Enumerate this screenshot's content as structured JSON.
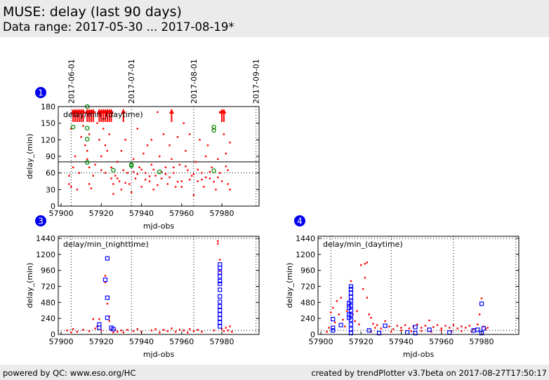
{
  "header": {
    "title": "MUSE: delay (last 90 days)",
    "subtitle": "Data range: 2017-05-30 ... 2017-08-19*"
  },
  "footer": {
    "left": "powered by QC: www.eso.org/HC",
    "right": "created by trendPlotter v3.7beta on 2017-08-27T17:50:17"
  },
  "colors": {
    "red": "#ff0000",
    "green": "#008800",
    "blue": "#0000ff",
    "badge": "#0000ee"
  },
  "chart_data": [
    {
      "type": "scatter",
      "badge": "1",
      "title": "delay/min_(daytime)",
      "xlabel": "mjd-obs",
      "ylabel": "delay_(min)",
      "xlim": [
        57898.6,
        57998.5
      ],
      "ylim": [
        0,
        180
      ],
      "xticks": [
        57900,
        57920,
        57940,
        57960,
        57980
      ],
      "yticks": [
        0,
        30,
        60,
        90,
        120,
        150,
        180
      ],
      "date_ticks": [
        {
          "label": "2017-06-01",
          "x": 57905
        },
        {
          "label": "2017-07-01",
          "x": 57935
        },
        {
          "label": "2017-08-01",
          "x": 57966
        },
        {
          "label": "2017-09-01",
          "x": 57997
        }
      ],
      "hlines": [
        {
          "y": 80,
          "style": "solid"
        },
        {
          "y": 60,
          "style": "dotted"
        }
      ],
      "arrows_above_range_x": [
        57906,
        57907,
        57908,
        57909,
        57910,
        57911,
        57913,
        57914,
        57915,
        57916,
        57919,
        57920,
        57921,
        57922,
        57923,
        57924,
        57925,
        57931,
        57955,
        57980,
        57981
      ],
      "red_points": [
        [
          57904,
          55
        ],
        [
          57904,
          40
        ],
        [
          57905,
          35
        ],
        [
          57905,
          140
        ],
        [
          57906,
          70
        ],
        [
          57907,
          90
        ],
        [
          57908,
          30
        ],
        [
          57909,
          60
        ],
        [
          57910,
          125
        ],
        [
          57911,
          145
        ],
        [
          57912,
          110
        ],
        [
          57913,
          100
        ],
        [
          57913,
          85
        ],
        [
          57914,
          70
        ],
        [
          57914,
          130
        ],
        [
          57914,
          40
        ],
        [
          57915,
          32
        ],
        [
          57916,
          55
        ],
        [
          57917,
          75
        ],
        [
          57918,
          150
        ],
        [
          57919,
          120
        ],
        [
          57920,
          65
        ],
        [
          57920,
          90
        ],
        [
          57921,
          140
        ],
        [
          57922,
          110
        ],
        [
          57923,
          100
        ],
        [
          57924,
          130
        ],
        [
          57925,
          70
        ],
        [
          57925,
          50
        ],
        [
          57926,
          40
        ],
        [
          57926,
          22
        ],
        [
          57927,
          55
        ],
        [
          57928,
          80
        ],
        [
          57929,
          45
        ],
        [
          57930,
          30
        ],
        [
          57931,
          65
        ],
        [
          57932,
          120
        ],
        [
          57933,
          60
        ],
        [
          57934,
          40
        ],
        [
          57935,
          25
        ],
        [
          57936,
          85
        ],
        [
          57937,
          50
        ],
        [
          57938,
          140
        ],
        [
          57939,
          70
        ],
        [
          57940,
          35
        ],
        [
          57941,
          95
        ],
        [
          57942,
          60
        ],
        [
          57943,
          110
        ],
        [
          57944,
          45
        ],
        [
          57945,
          75
        ],
        [
          57946,
          30
        ],
        [
          57947,
          55
        ],
        [
          57948,
          170
        ],
        [
          57949,
          90
        ],
        [
          57950,
          50
        ],
        [
          57951,
          130
        ],
        [
          57952,
          70
        ],
        [
          57953,
          40
        ],
        [
          57954,
          110
        ],
        [
          57955,
          85
        ],
        [
          57956,
          60
        ],
        [
          57957,
          35
        ],
        [
          57958,
          125
        ],
        [
          57959,
          75
        ],
        [
          57960,
          45
        ],
        [
          57961,
          150
        ],
        [
          57962,
          100
        ],
        [
          57963,
          65
        ],
        [
          57964,
          130
        ],
        [
          57965,
          55
        ],
        [
          57966,
          20
        ],
        [
          57967,
          80
        ],
        [
          57968,
          45
        ],
        [
          57969,
          120
        ],
        [
          57970,
          60
        ],
        [
          57971,
          35
        ],
        [
          57972,
          90
        ],
        [
          57973,
          110
        ],
        [
          57974,
          50
        ],
        [
          57975,
          70
        ],
        [
          57976,
          140
        ],
        [
          57977,
          30
        ],
        [
          57978,
          85
        ],
        [
          57979,
          60
        ],
        [
          57980,
          45
        ],
        [
          57981,
          130
        ],
        [
          57982,
          95
        ],
        [
          57983,
          65
        ],
        [
          57984,
          30
        ],
        [
          57984,
          115
        ],
        [
          57979,
          170
        ],
        [
          57960,
          35
        ],
        [
          57945,
          120
        ],
        [
          57930,
          100
        ],
        [
          57922,
          60
        ],
        [
          57928,
          50
        ],
        [
          57932,
          42
        ],
        [
          57938,
          58
        ],
        [
          57942,
          48
        ],
        [
          57946,
          66
        ],
        [
          57950,
          62
        ],
        [
          57954,
          52
        ],
        [
          57958,
          44
        ],
        [
          57962,
          72
        ],
        [
          57966,
          58
        ],
        [
          57970,
          48
        ],
        [
          57974,
          62
        ],
        [
          57978,
          52
        ],
        [
          57983,
          40
        ],
        [
          57936,
          62
        ],
        [
          57940,
          66
        ],
        [
          57944,
          54
        ],
        [
          57948,
          38
        ],
        [
          57952,
          58
        ],
        [
          57956,
          70
        ],
        [
          57964,
          48
        ],
        [
          57968,
          66
        ],
        [
          57972,
          52
        ],
        [
          57976,
          44
        ],
        [
          57982,
          72
        ]
      ],
      "green_points": [
        [
          57906,
          143
        ],
        [
          57913,
          141
        ],
        [
          57913,
          121
        ],
        [
          57913,
          79
        ],
        [
          57913,
          180
        ],
        [
          57926,
          65
        ],
        [
          57935,
          75
        ],
        [
          57935,
          73
        ],
        [
          57949,
          62
        ],
        [
          57976,
          143
        ],
        [
          57976,
          137
        ],
        [
          57976,
          64
        ]
      ]
    },
    {
      "type": "scatter",
      "badge": "3",
      "title": "delay/min_(nighttime)",
      "xlabel": "mjd-obs",
      "ylabel": "delay_(min)",
      "xlim": [
        57898.6,
        57998.5
      ],
      "ylim": [
        0,
        1472
      ],
      "xticks": [
        57900,
        57920,
        57940,
        57960,
        57980
      ],
      "yticks": [
        0,
        240,
        480,
        720,
        960,
        1200,
        1440
      ],
      "vlines": [
        57905,
        57935,
        57966,
        57997
      ],
      "hlines": [
        {
          "y": 60,
          "style": "dotted"
        },
        {
          "y": 1440,
          "style": "dotted"
        }
      ],
      "red_points": [
        [
          57903,
          60
        ],
        [
          57905,
          30
        ],
        [
          57906,
          80
        ],
        [
          57908,
          40
        ],
        [
          57911,
          70
        ],
        [
          57914,
          50
        ],
        [
          57916,
          230
        ],
        [
          57917,
          90
        ],
        [
          57918,
          120
        ],
        [
          57919,
          230
        ],
        [
          57920,
          60
        ],
        [
          57922,
          880
        ],
        [
          57922,
          780
        ],
        [
          57923,
          460
        ],
        [
          57924,
          270
        ],
        [
          57924,
          200
        ],
        [
          57925,
          60
        ],
        [
          57926,
          30
        ],
        [
          57927,
          70
        ],
        [
          57928,
          40
        ],
        [
          57930,
          60
        ],
        [
          57931,
          30
        ],
        [
          57933,
          70
        ],
        [
          57936,
          50
        ],
        [
          57938,
          80
        ],
        [
          57940,
          40
        ],
        [
          57945,
          60
        ],
        [
          57947,
          80
        ],
        [
          57949,
          30
        ],
        [
          57951,
          70
        ],
        [
          57953,
          50
        ],
        [
          57955,
          90
        ],
        [
          57957,
          40
        ],
        [
          57959,
          70
        ],
        [
          57961,
          60
        ],
        [
          57963,
          30
        ],
        [
          57964,
          80
        ],
        [
          57966,
          50
        ],
        [
          57968,
          70
        ],
        [
          57970,
          40
        ],
        [
          57976,
          60
        ],
        [
          57978,
          1400
        ],
        [
          57978,
          1360
        ],
        [
          57979,
          1120
        ],
        [
          57979,
          950
        ],
        [
          57980,
          80
        ],
        [
          57981,
          50
        ],
        [
          57982,
          100
        ],
        [
          57983,
          60
        ],
        [
          57984,
          120
        ],
        [
          57985,
          40
        ]
      ],
      "blue_points": [
        [
          57919,
          150
        ],
        [
          57919,
          100
        ],
        [
          57923,
          1140
        ],
        [
          57922,
          820
        ],
        [
          57923,
          550
        ],
        [
          57923,
          250
        ],
        [
          57925,
          100
        ],
        [
          57926,
          80
        ],
        [
          57979,
          1050
        ],
        [
          57979,
          1000
        ],
        [
          57979,
          930
        ],
        [
          57979,
          870
        ],
        [
          57979,
          800
        ],
        [
          57979,
          760
        ],
        [
          57979,
          670
        ],
        [
          57979,
          570
        ],
        [
          57979,
          490
        ],
        [
          57979,
          420
        ],
        [
          57979,
          360
        ],
        [
          57979,
          300
        ],
        [
          57979,
          240
        ],
        [
          57979,
          180
        ],
        [
          57979,
          120
        ]
      ]
    },
    {
      "type": "scatter",
      "badge": "4",
      "title": "delay/min_(daytime)",
      "xlabel": "mjd-obs",
      "ylabel": "delay_(min)",
      "xlim": [
        57898.6,
        57998.5
      ],
      "ylim": [
        0,
        1472
      ],
      "xticks": [
        57900,
        57920,
        57940,
        57960,
        57980
      ],
      "yticks": [
        0,
        240,
        480,
        720,
        960,
        1200,
        1440
      ],
      "vlines": [
        57905,
        57935,
        57966,
        57997
      ],
      "hlines": [
        {
          "y": 60,
          "style": "dotted"
        },
        {
          "y": 1440,
          "style": "dotted"
        }
      ],
      "red_points": [
        [
          57903,
          40
        ],
        [
          57904,
          100
        ],
        [
          57905,
          330
        ],
        [
          57906,
          400
        ],
        [
          57907,
          180
        ],
        [
          57908,
          500
        ],
        [
          57909,
          300
        ],
        [
          57910,
          550
        ],
        [
          57911,
          220
        ],
        [
          57912,
          120
        ],
        [
          57913,
          350
        ],
        [
          57915,
          800
        ],
        [
          57916,
          300
        ],
        [
          57917,
          200
        ],
        [
          57918,
          350
        ],
        [
          57919,
          150
        ],
        [
          57920,
          1040
        ],
        [
          57921,
          680
        ],
        [
          57922,
          1060
        ],
        [
          57922,
          850
        ],
        [
          57923,
          1080
        ],
        [
          57923,
          550
        ],
        [
          57924,
          300
        ],
        [
          57925,
          250
        ],
        [
          57926,
          160
        ],
        [
          57927,
          100
        ],
        [
          57928,
          140
        ],
        [
          57930,
          90
        ],
        [
          57932,
          200
        ],
        [
          57934,
          120
        ],
        [
          57936,
          80
        ],
        [
          57938,
          130
        ],
        [
          57940,
          100
        ],
        [
          57942,
          140
        ],
        [
          57944,
          90
        ],
        [
          57946,
          120
        ],
        [
          57948,
          150
        ],
        [
          57950,
          100
        ],
        [
          57952,
          130
        ],
        [
          57954,
          210
        ],
        [
          57956,
          110
        ],
        [
          57958,
          140
        ],
        [
          57960,
          90
        ],
        [
          57962,
          130
        ],
        [
          57964,
          100
        ],
        [
          57966,
          140
        ],
        [
          57968,
          90
        ],
        [
          57970,
          120
        ],
        [
          57972,
          100
        ],
        [
          57974,
          130
        ],
        [
          57976,
          80
        ],
        [
          57978,
          150
        ],
        [
          57979,
          300
        ],
        [
          57980,
          540
        ],
        [
          57981,
          120
        ],
        [
          57982,
          80
        ],
        [
          57983,
          100
        ],
        [
          57935,
          40
        ],
        [
          57945,
          50
        ],
        [
          57955,
          40
        ],
        [
          57965,
          50
        ],
        [
          57975,
          40
        ],
        [
          57925,
          40
        ],
        [
          57940,
          60
        ],
        [
          57950,
          50
        ],
        [
          57960,
          60
        ],
        [
          57970,
          50
        ]
      ],
      "blue_points": [
        [
          57906,
          230
        ],
        [
          57906,
          100
        ],
        [
          57906,
          60
        ],
        [
          57910,
          140
        ],
        [
          57914,
          470
        ],
        [
          57914,
          400
        ],
        [
          57914,
          300
        ],
        [
          57914,
          250
        ],
        [
          57915,
          720
        ],
        [
          57915,
          680
        ],
        [
          57915,
          620
        ],
        [
          57915,
          560
        ],
        [
          57915,
          500
        ],
        [
          57915,
          430
        ],
        [
          57915,
          360
        ],
        [
          57915,
          290
        ],
        [
          57915,
          220
        ],
        [
          57915,
          150
        ],
        [
          57915,
          80
        ],
        [
          57915,
          20
        ],
        [
          57924,
          60
        ],
        [
          57929,
          20
        ],
        [
          57932,
          130
        ],
        [
          57943,
          30
        ],
        [
          57947,
          110
        ],
        [
          57947,
          20
        ],
        [
          57954,
          70
        ],
        [
          57964,
          30
        ],
        [
          57976,
          60
        ],
        [
          57978,
          70
        ],
        [
          57980,
          460
        ],
        [
          57980,
          20
        ],
        [
          57981,
          90
        ]
      ]
    }
  ]
}
